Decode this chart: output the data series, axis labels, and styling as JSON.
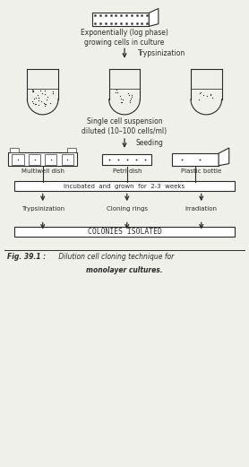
{
  "fig_width": 2.78,
  "fig_height": 5.21,
  "dpi": 100,
  "bg_color": "#f0f0ea",
  "line_color": "#2a2a2a",
  "flask_label": "Exponentially (log phase)\ngrowing cells in culture",
  "trypsinization_label": "Trypsinization",
  "single_cell_label": "Single cell suspension\ndiluted (10–100 cells/ml)",
  "seeding_label": "Seeding",
  "incubated_label": "Incubated  and  grown  for  2-3  weeks",
  "multiwell_label": "Multiwell dish",
  "petri_label": "Petri dish",
  "plastic_label": "Plastic bottle",
  "trypsin2_label": "Trypsinization",
  "cloning_label": "Cloning rings",
  "irrad_label": "Irradiation",
  "colonies_label": "COLONIES ISOLATED",
  "fig_caption_bold": "Fig. 39.1 :",
  "fig_caption_italic": " Dilution cell cloning technique for",
  "fig_caption_line2": "monolayer cultures.",
  "xlim": [
    0,
    10
  ],
  "ylim": [
    0,
    19
  ]
}
